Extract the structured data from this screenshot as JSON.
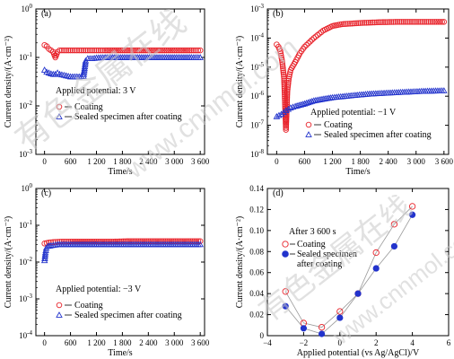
{
  "watermark": {
    "cjk": "有色金属在线",
    "url": "www.cnnmol.com"
  },
  "colors": {
    "coating": "#e8232b",
    "sealed": "#2233cc",
    "axis": "#000000",
    "watermark": "#c8c8c8"
  },
  "chart_data": [
    {
      "panel": "(a)",
      "type": "scatter",
      "yscale": "log",
      "ylabel": "Current density/(A·cm⁻²)",
      "xlabel": "Time/s",
      "xlim": [
        -200,
        3700
      ],
      "ylim": [
        0.001,
        1
      ],
      "xticks": [
        0,
        600,
        1200,
        1800,
        2400,
        3000,
        3600
      ],
      "xtick_labels": [
        "0",
        "600",
        "1 200",
        "1 800",
        "2 400",
        "3 000",
        "3 600"
      ],
      "yticks_exp": [
        -3,
        -2,
        -1,
        0
      ],
      "note": "Applied potential: 3 V",
      "legend": [
        "Coating",
        "Sealed specimen after coating"
      ],
      "series": [
        {
          "name": "Coating",
          "marker": "circle",
          "x": [
            0,
            50,
            100,
            150,
            200,
            250,
            300,
            350,
            400,
            500,
            600,
            800,
            1000,
            1200,
            1400,
            1800,
            2200,
            2600,
            3000,
            3400,
            3600
          ],
          "y": [
            0.18,
            0.17,
            0.15,
            0.14,
            0.13,
            0.1,
            0.13,
            0.14,
            0.14,
            0.14,
            0.14,
            0.14,
            0.14,
            0.14,
            0.14,
            0.14,
            0.14,
            0.14,
            0.14,
            0.14,
            0.14
          ]
        },
        {
          "name": "Sealed specimen after coating",
          "marker": "triangle",
          "x": [
            0,
            50,
            100,
            150,
            200,
            250,
            300,
            350,
            400,
            500,
            600,
            700,
            800,
            900,
            950,
            1000,
            1100,
            1200,
            1400,
            1800,
            2200,
            2600,
            3000,
            3400,
            3600
          ],
          "y": [
            0.055,
            0.05,
            0.048,
            0.046,
            0.045,
            0.045,
            0.048,
            0.045,
            0.044,
            0.042,
            0.04,
            0.04,
            0.04,
            0.041,
            0.085,
            0.095,
            0.095,
            0.098,
            0.1,
            0.1,
            0.1,
            0.1,
            0.1,
            0.1,
            0.1
          ]
        }
      ]
    },
    {
      "panel": "(b)",
      "type": "scatter",
      "yscale": "log",
      "ylabel": "Current density/(A·cm⁻²)",
      "xlabel": "Time/s",
      "xlim": [
        -200,
        3700
      ],
      "ylim": [
        1e-08,
        0.001
      ],
      "xticks": [
        0,
        600,
        1200,
        1800,
        2400,
        3000,
        3600
      ],
      "xtick_labels": [
        "0",
        "600",
        "1 200",
        "1 800",
        "2 400",
        "3 000",
        "3 600"
      ],
      "yticks_exp": [
        -8,
        -7,
        -6,
        -5,
        -4,
        -3
      ],
      "note": "Applied potential: −1 V",
      "legend": [
        "Coating",
        "Sealed specimen after coating"
      ],
      "series": [
        {
          "name": "Coating",
          "marker": "circle",
          "x": [
            0,
            40,
            80,
            120,
            160,
            200,
            230,
            260,
            300,
            400,
            500,
            600,
            800,
            1000,
            1200,
            1400,
            1800,
            2200,
            2600,
            3000,
            3400,
            3600
          ],
          "y": [
            6e-05,
            5e-05,
            3.5e-05,
            1.5e-05,
            4e-06,
            7e-08,
            1.5e-06,
            4e-06,
            8e-06,
            1.5e-05,
            3e-05,
            5e-05,
            0.0001,
            0.00018,
            0.00026,
            0.0003,
            0.00033,
            0.00035,
            0.00036,
            0.00036,
            0.00036,
            0.00036
          ]
        },
        {
          "name": "Sealed specimen after coating",
          "marker": "triangle",
          "x": [
            0,
            100,
            200,
            300,
            400,
            600,
            800,
            1000,
            1200,
            1600,
            2000,
            2400,
            2800,
            3200,
            3600
          ],
          "y": [
            2e-07,
            2.4e-07,
            3.2e-07,
            4e-07,
            4.5e-07,
            5.5e-07,
            7e-07,
            8e-07,
            9e-07,
            1.05e-06,
            1.2e-06,
            1.3e-06,
            1.4e-06,
            1.5e-06,
            1.55e-06
          ]
        }
      ]
    },
    {
      "panel": "(c)",
      "type": "scatter",
      "yscale": "log",
      "ylabel": "Current density/(A·cm⁻²)",
      "xlabel": "Time/s",
      "xlim": [
        -200,
        3700
      ],
      "ylim": [
        0.0001,
        1
      ],
      "xticks": [
        0,
        600,
        1200,
        1800,
        2400,
        3000,
        3600
      ],
      "xtick_labels": [
        "0",
        "600",
        "1 200",
        "1 800",
        "2 400",
        "3 000",
        "3 600"
      ],
      "yticks_exp": [
        -4,
        -3,
        -2,
        -1,
        0
      ],
      "note": "Applied potential: −3 V",
      "legend": [
        "Coating",
        "Sealed specimen after coating"
      ],
      "series": [
        {
          "name": "Coating",
          "marker": "circle",
          "x": [
            0,
            100,
            200,
            400,
            600,
            900,
            1200,
            1600,
            2000,
            2400,
            2800,
            3200,
            3600
          ],
          "y": [
            0.032,
            0.034,
            0.035,
            0.036,
            0.036,
            0.036,
            0.036,
            0.036,
            0.037,
            0.037,
            0.037,
            0.037,
            0.037
          ]
        },
        {
          "name": "Sealed specimen after coating",
          "marker": "triangle",
          "x": [
            0,
            20,
            40,
            80,
            150,
            300,
            600,
            900,
            1200,
            1600,
            2000,
            2400,
            2800,
            3200,
            3600
          ],
          "y": [
            0.011,
            0.018,
            0.024,
            0.027,
            0.028,
            0.03,
            0.03,
            0.03,
            0.03,
            0.03,
            0.03,
            0.03,
            0.03,
            0.03,
            0.03
          ]
        }
      ]
    },
    {
      "panel": "(d)",
      "type": "line",
      "yscale": "linear",
      "ylabel": "Current density/(A·cm⁻²)",
      "xlabel": "Applied potential (vs Ag/AgCl)/V",
      "xlim": [
        -4,
        6
      ],
      "ylim": [
        0,
        0.14
      ],
      "xticks": [
        -4,
        -2,
        0,
        2,
        4,
        6
      ],
      "xtick_labels": [
        "−4",
        "−2",
        "0",
        "2",
        "4",
        "6"
      ],
      "yticks": [
        0,
        0.02,
        0.04,
        0.06,
        0.08,
        0.1,
        0.12,
        0.14
      ],
      "ytick_labels": [
        "0",
        "0.02",
        "0.04",
        "0.06",
        "0.08",
        "0.10",
        "0.12",
        "0.14"
      ],
      "note": "After 3 600 s",
      "legend": [
        "Coating",
        "Sealed specimen",
        "after coating"
      ],
      "series": [
        {
          "name": "Coating",
          "marker": "circle-open",
          "x": [
            -3,
            -2,
            -1,
            0,
            1,
            2,
            3,
            4
          ],
          "y": [
            0.042,
            0.012,
            0.008,
            0.023,
            0.04,
            0.079,
            0.106,
            0.123
          ]
        },
        {
          "name": "Sealed specimen after coating",
          "marker": "circle-filled",
          "x": [
            -3,
            -2,
            -1,
            0,
            1,
            2,
            3,
            4
          ],
          "y": [
            0.028,
            0.007,
            0.0,
            0.017,
            0.04,
            0.064,
            0.085,
            0.115
          ]
        }
      ]
    }
  ]
}
